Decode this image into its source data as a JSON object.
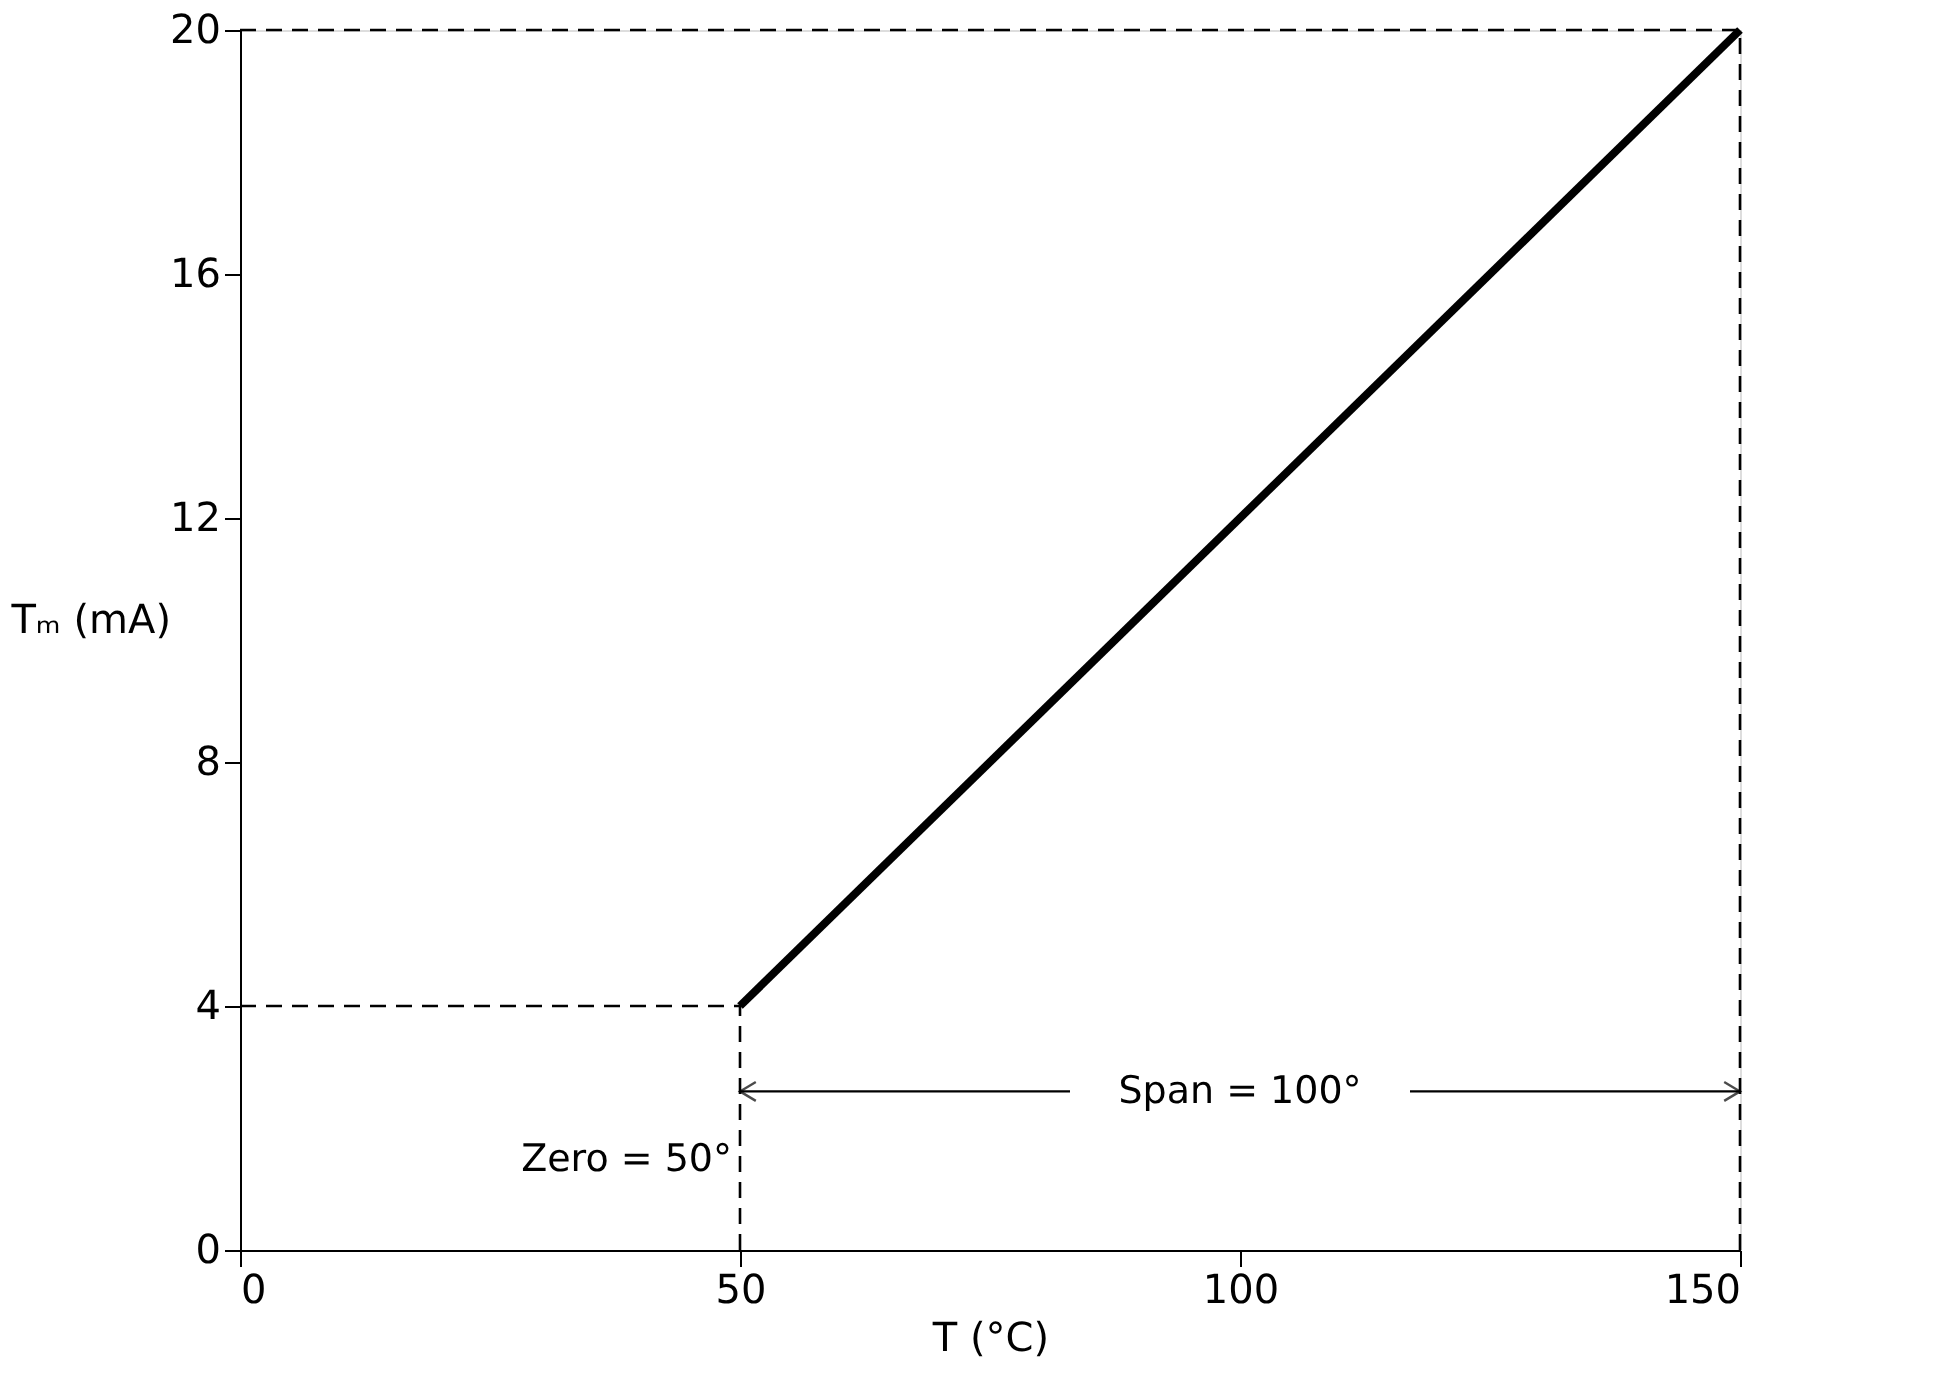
{
  "chart_data": {
    "type": "line",
    "xlabel": "T (°C)",
    "ylabel": "Tₘ (mA)",
    "x": [
      50,
      150
    ],
    "series": [
      {
        "color": "#000000",
        "values": [
          4,
          20
        ]
      }
    ],
    "xlim": [
      0,
      150
    ],
    "xticks": [
      0,
      50,
      100,
      150
    ],
    "ylim": [
      0,
      20
    ],
    "yticks": [
      0,
      4,
      8,
      12,
      16,
      20
    ],
    "grid": false,
    "marker": "none",
    "line_style": "solid",
    "ref_lines": [
      {
        "axis": "y",
        "value": 4,
        "line_style": "dashed",
        "color": "#000000"
      },
      {
        "axis": "y",
        "value": 20,
        "line_style": "dashed",
        "color": "#000000"
      },
      {
        "axis": "x",
        "value": 50,
        "line_style": "dashed",
        "color": "#000000"
      },
      {
        "axis": "x",
        "value": 150,
        "line_style": "dashed",
        "color": "#000000"
      }
    ],
    "annotations": [
      {
        "text": "Zero = 50°",
        "x": 50,
        "y": 1.5
      },
      {
        "text": "Span = 100°",
        "x": 150,
        "y": 2.6
      }
    ]
  }
}
